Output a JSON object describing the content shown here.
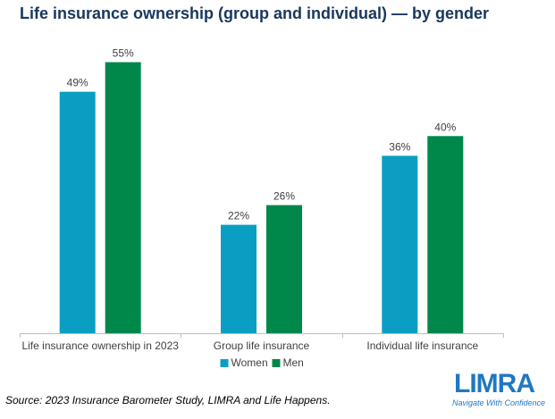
{
  "title": "Life insurance ownership (group and individual) — by gender",
  "title_color": "#17375e",
  "source": "Source: 2023 Insurance Barometer Study, LIMRA and Life Happens.",
  "logo": {
    "wordmark": "LIMRA",
    "tagline": "Navigate With Confidence",
    "color": "#1f78c1"
  },
  "chart_data": {
    "type": "bar",
    "title": "Life insurance ownership (group and individual) — by gender",
    "categories": [
      "Life insurance ownership in 2023",
      "Group life insurance",
      "Individual life insurance"
    ],
    "series": [
      {
        "name": "Women",
        "values": [
          49,
          22,
          36
        ],
        "labels": [
          "49%",
          "22%",
          "36%"
        ],
        "color": "#0a9fc2"
      },
      {
        "name": "Men",
        "values": [
          55,
          26,
          40
        ],
        "labels": [
          "55%",
          "26%",
          "40%"
        ],
        "color": "#00874a"
      }
    ],
    "ylim": [
      0,
      60
    ],
    "unit": "%",
    "grid": false,
    "legend": "bottom"
  }
}
